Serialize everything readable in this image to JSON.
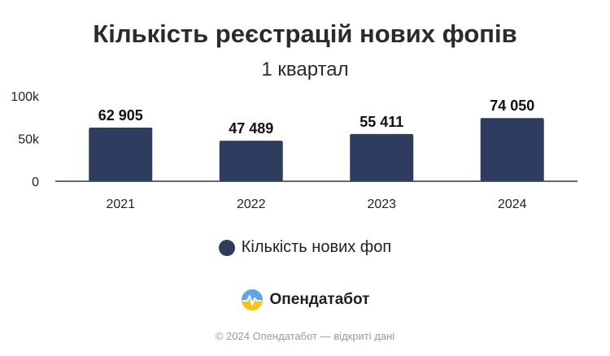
{
  "chart_data": {
    "type": "bar",
    "title": "Кількість реєстрацій нових фопів",
    "subtitle": "1 квартал",
    "categories": [
      "2021",
      "2022",
      "2023",
      "2024"
    ],
    "series": [
      {
        "name": "Кількість нових фоп",
        "values": [
          62905,
          47489,
          55411,
          74050
        ],
        "labels": [
          "62 905",
          "47 489",
          "55 411",
          "74 050"
        ]
      }
    ],
    "ylim": [
      0,
      100000
    ],
    "yticks": [
      0,
      50000,
      100000
    ],
    "ytick_labels": [
      "0",
      "50k",
      "100k"
    ],
    "grid": false,
    "legend_position": "bottom",
    "bar_color": "#2e3d5f"
  },
  "brand": {
    "name": "Опендатабот",
    "logo_icon": "opendatabot-logo-icon"
  },
  "footer": {
    "text": "© 2024 Опендатабот — відкриті дані"
  }
}
